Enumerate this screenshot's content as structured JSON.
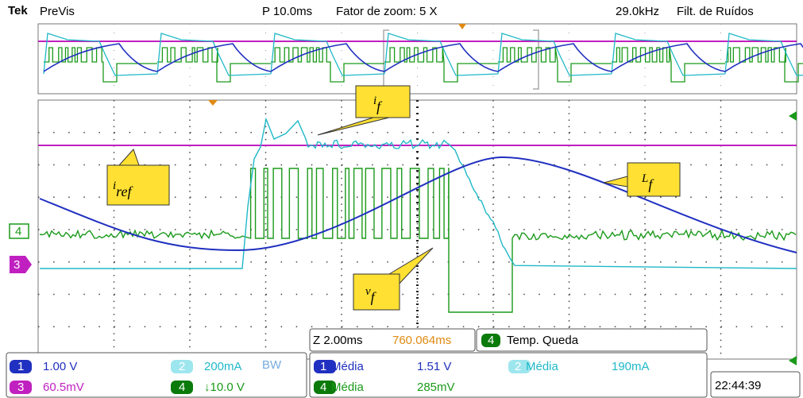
{
  "header": {
    "brand": "Tek",
    "mode": "PreVis",
    "timebase": "P 10.0ms",
    "zoom": "Fator de zoom: 5 X",
    "frequency": "29.0kHz",
    "filter": "Filt. de Ruídos"
  },
  "annotations": [
    {
      "symbol": "i",
      "subscript": "f"
    },
    {
      "symbol": "i",
      "subscript": "ref"
    },
    {
      "symbol": "L",
      "subscript": "f"
    },
    {
      "symbol": "v",
      "subscript": "f"
    }
  ],
  "markers": [
    "4",
    "3"
  ],
  "zoom_bar": {
    "scale": "Z 2.00ms",
    "position": "760.064ms",
    "channel": "4",
    "measurement": "Temp. Queda"
  },
  "channels": [
    {
      "number": "1",
      "scale": "1.00 V"
    },
    {
      "number": "2",
      "scale": "200mA",
      "bandwidth": "BW"
    },
    {
      "number": "3",
      "scale": "60.5mV"
    },
    {
      "number": "4",
      "scale": "↓10.0 V"
    }
  ],
  "measurements": [
    {
      "channel": "1",
      "label": "Média",
      "value": "1.51 V"
    },
    {
      "channel": "2",
      "label": "Média",
      "value": "190mA"
    },
    {
      "channel": "4",
      "label": "Média",
      "value": "285mV"
    }
  ],
  "clock": "22:44:39"
}
